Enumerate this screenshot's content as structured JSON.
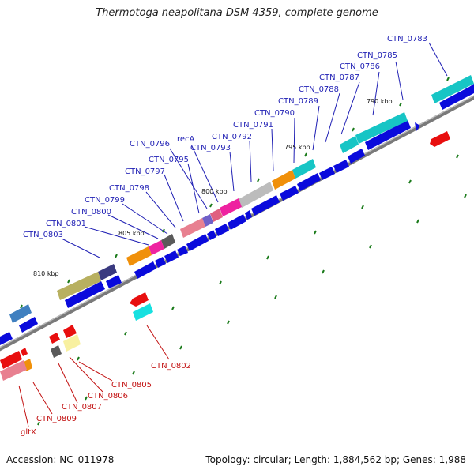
{
  "title": "Thermotoga neapolitana DSM 4359, complete genome",
  "footer": {
    "accession": "Accession: NC_011978",
    "summary": "Topology: circular; Length: 1,884,562 bp; Genes: 1,988"
  },
  "colors": {
    "forward_label": "#1f1fb4",
    "reverse_label": "#c21010",
    "forward_gene": "#0a0adc",
    "reverse_gene": "#e80f0f",
    "backbone": "#888888",
    "ticks": "#1a7a1a"
  },
  "kbp_marks": [
    "790 kbp",
    "795 kbp",
    "800 kbp",
    "805 kbp",
    "810 kbp"
  ],
  "forward_gene_labels": [
    "CTN_0783",
    "CTN_0785",
    "CTN_0786",
    "CTN_0787",
    "CTN_0788",
    "CTN_0789",
    "CTN_0790",
    "CTN_0791",
    "CTN_0792",
    "CTN_0793",
    "recA",
    "CTN_0796",
    "CTN_0795",
    "CTN_0797",
    "CTN_0798",
    "CTN_0799",
    "CTN_0800",
    "CTN_0801",
    "CTN_0803"
  ],
  "reverse_gene_labels": [
    "CTN_0802",
    "CTN_0805",
    "CTN_0806",
    "CTN_0807",
    "CTN_0809",
    "gltX"
  ]
}
